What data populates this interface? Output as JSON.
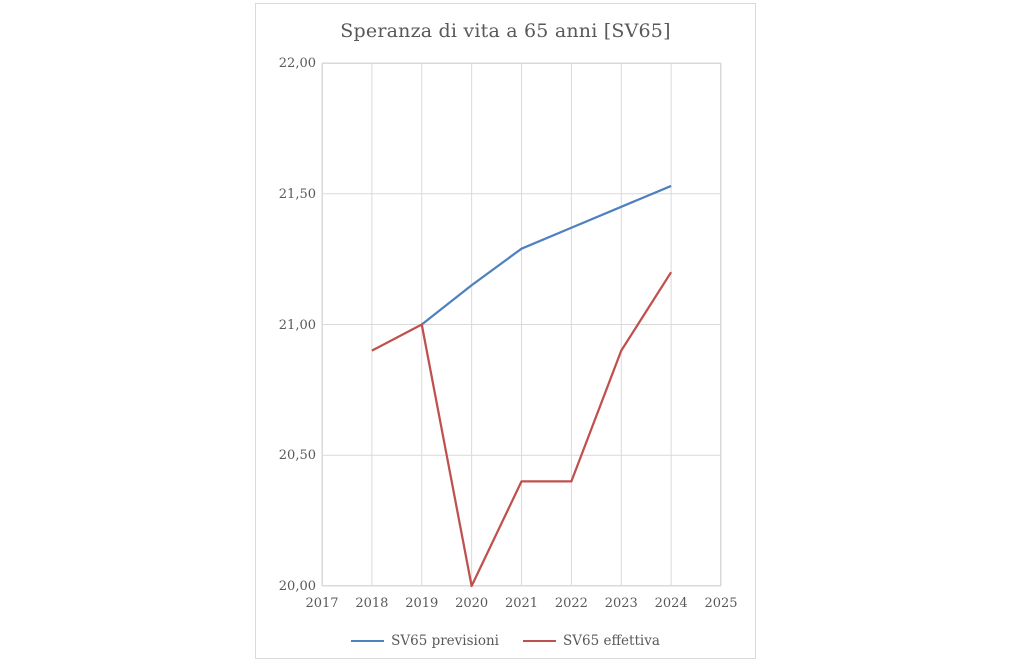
{
  "chart_data": {
    "type": "line",
    "title": "Speranza di vita a 65 anni [SV65]",
    "xlabel": "",
    "ylabel": "",
    "xlim": [
      2017,
      2025
    ],
    "ylim": [
      20.0,
      22.0
    ],
    "x_ticks": [
      "2017",
      "2018",
      "2019",
      "2020",
      "2021",
      "2022",
      "2023",
      "2024",
      "2025"
    ],
    "x_tick_values": [
      2017,
      2018,
      2019,
      2020,
      2021,
      2022,
      2023,
      2024,
      2025
    ],
    "y_ticks": [
      "22,00",
      "21,50",
      "21,00",
      "20,50",
      "20,00"
    ],
    "y_tick_values": [
      22.0,
      21.5,
      21.0,
      20.5,
      20.0
    ],
    "grid": true,
    "legend_position": "bottom",
    "series": [
      {
        "name": "SV65 previsioni",
        "color": "#4f81bd",
        "x": [
          2019,
          2020,
          2021,
          2022,
          2023,
          2024
        ],
        "values": [
          21.0,
          21.15,
          21.29,
          21.37,
          21.45,
          21.53
        ]
      },
      {
        "name": "SV65 effettiva",
        "color": "#c0504d",
        "x": [
          2018,
          2019,
          2020,
          2021,
          2022,
          2023,
          2024
        ],
        "values": [
          20.9,
          21.0,
          20.0,
          20.4,
          20.4,
          20.9,
          21.2
        ]
      }
    ],
    "colors": {
      "gridline": "#d9d9d9",
      "plot_border": "#d9d9d9",
      "text": "#595959",
      "background": "#ffffff"
    }
  }
}
